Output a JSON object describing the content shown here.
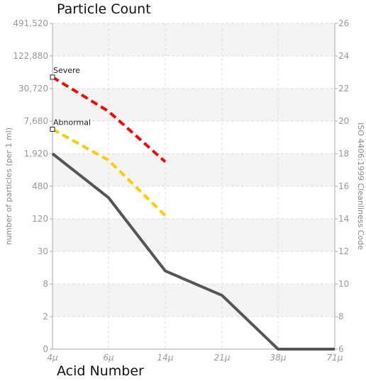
{
  "chart_data": {
    "type": "line",
    "title": "Particle Count",
    "bottom_title": "Acid Number",
    "xlabel": "",
    "ylabel": "number of particles (per 1 ml)",
    "y2label": "ISO 4406:1999 Cleanliness Code",
    "categories": [
      "4µ",
      "6µ",
      "14µ",
      "21µ",
      "38µ",
      "71µ"
    ],
    "yticks": [
      "0",
      "2",
      "8",
      "30",
      "120",
      "480",
      "1,920",
      "7,680",
      "30,720",
      "122,880",
      "491,520"
    ],
    "y2ticks": [
      "6",
      "8",
      "10",
      "12",
      "14",
      "16",
      "18",
      "20",
      "22",
      "24",
      "26"
    ],
    "y2lim": [
      6,
      26
    ],
    "grid": true,
    "series": [
      {
        "name": "Severe",
        "color": "#ff0000",
        "dash": true,
        "values": [
          22.7,
          20.6,
          17.5,
          null,
          null,
          null
        ]
      },
      {
        "name": "Abnormal",
        "color": "#ffcc00",
        "dash": true,
        "values": [
          19.5,
          17.6,
          14.2,
          null,
          null,
          null
        ]
      },
      {
        "name": "",
        "color": "#555555",
        "dash": false,
        "values": [
          18.0,
          15.3,
          10.8,
          9.3,
          6.0,
          6.0
        ]
      }
    ]
  }
}
